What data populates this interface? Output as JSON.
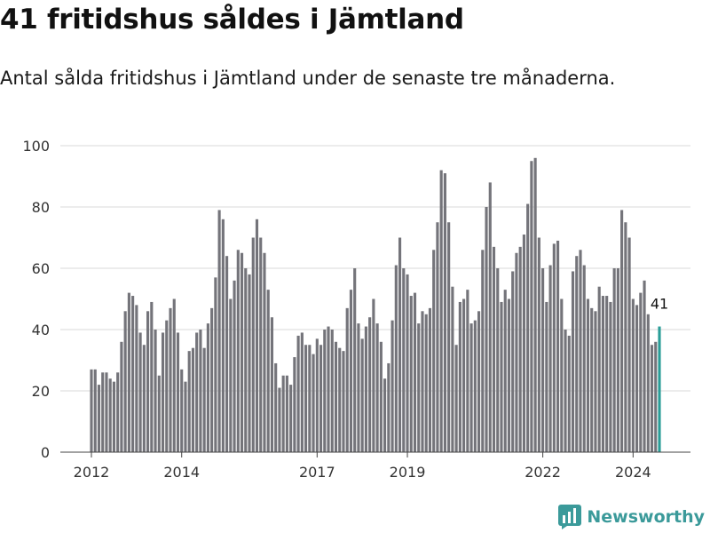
{
  "header": {
    "title": "41 fritidshus såldes i Jämtland",
    "subtitle": "Antal sålda fritidshus i Jämtland under de senaste tre månaderna."
  },
  "brand": {
    "name": "Newsworthy",
    "icon": "newsworthy-logo-icon",
    "color": "#3b9a9a"
  },
  "colors": {
    "bar": "#74747a",
    "highlight": "#2a9d98",
    "grid": "#d9d9d9",
    "axis": "#444444"
  },
  "chart_data": {
    "type": "bar",
    "title": "41 fritidshus såldes i Jämtland",
    "subtitle": "Antal sålda fritidshus i Jämtland under de senaste tre månaderna.",
    "xlabel": "",
    "ylabel": "",
    "x_start": "2012-01",
    "x_end": "2024-09",
    "x_ticks": [
      "2012",
      "2014",
      "2017",
      "2019",
      "2022",
      "2024"
    ],
    "x_tick_dates": [
      "2012-01",
      "2014-01",
      "2017-01",
      "2019-01",
      "2022-01",
      "2024-01"
    ],
    "ylim": [
      0,
      100
    ],
    "y_ticks": [
      0,
      20,
      40,
      60,
      80,
      100
    ],
    "grid": true,
    "highlight_label": "41",
    "values": [
      27,
      27,
      22,
      26,
      26,
      24,
      23,
      26,
      36,
      46,
      52,
      51,
      48,
      39,
      35,
      46,
      49,
      40,
      25,
      39,
      43,
      47,
      50,
      39,
      27,
      23,
      33,
      34,
      39,
      40,
      34,
      42,
      47,
      57,
      79,
      76,
      64,
      50,
      56,
      66,
      65,
      60,
      58,
      70,
      76,
      70,
      65,
      53,
      44,
      29,
      21,
      25,
      25,
      22,
      31,
      38,
      39,
      35,
      35,
      32,
      37,
      35,
      40,
      41,
      40,
      36,
      34,
      33,
      47,
      53,
      60,
      42,
      37,
      41,
      44,
      50,
      42,
      36,
      24,
      29,
      43,
      61,
      70,
      60,
      58,
      51,
      52,
      42,
      46,
      45,
      47,
      66,
      75,
      92,
      91,
      75,
      54,
      35,
      49,
      50,
      53,
      42,
      43,
      46,
      66,
      80,
      88,
      67,
      60,
      49,
      53,
      50,
      59,
      65,
      67,
      71,
      81,
      95,
      96,
      70,
      60,
      49,
      61,
      68,
      69,
      50,
      40,
      38,
      59,
      64,
      66,
      61,
      50,
      47,
      46,
      54,
      51,
      51,
      49,
      60,
      60,
      79,
      75,
      70,
      50,
      48,
      52,
      56,
      45,
      35,
      36,
      41
    ]
  }
}
